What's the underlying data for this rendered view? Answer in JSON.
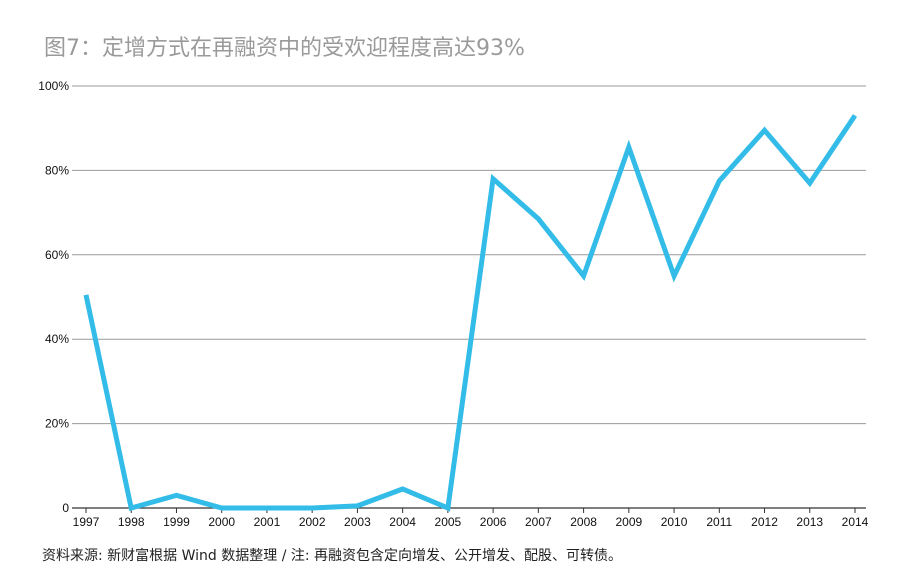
{
  "chart_data": {
    "type": "line",
    "title": "图7：定增方式在再融资中的受欢迎程度高达93%",
    "xlabel": "",
    "ylabel": "",
    "categories": [
      "1997",
      "1998",
      "1999",
      "2000",
      "2001",
      "2002",
      "2003",
      "2004",
      "2005",
      "2006",
      "2007",
      "2008",
      "2009",
      "2010",
      "2011",
      "2012",
      "2013",
      "2014"
    ],
    "series": [
      {
        "values": [
          50.5,
          0,
          3,
          0,
          0,
          0,
          0.5,
          4.5,
          0,
          78,
          68.5,
          55,
          85.5,
          55,
          77.5,
          89.5,
          77,
          93
        ]
      }
    ],
    "ylim": [
      0,
      100
    ],
    "yticks": [
      0,
      20,
      40,
      60,
      80,
      100
    ],
    "ytick_labels": [
      "0",
      "20%",
      "40%",
      "60%",
      "80%",
      "100%"
    ],
    "grid": "horizontal",
    "legend": "none",
    "line_color": "#33bce8",
    "grid_color": "#9a9a9a",
    "source": "资料来源: 新财富根据 Wind 数据整理 / 注: 再融资包含定向增发、公开增发、配股、可转债。"
  }
}
